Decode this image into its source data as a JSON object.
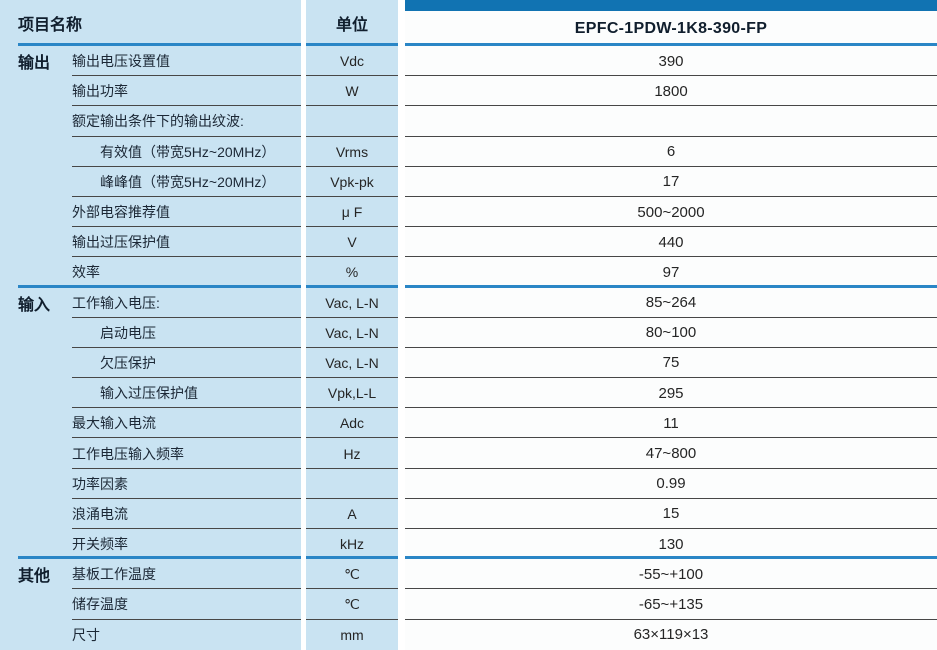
{
  "header": {
    "item_col": "项目名称",
    "unit_col": "单位",
    "model": "EPFC-1PDW-1K8-390-FP"
  },
  "colors": {
    "panel_light_blue": "#c9e3f2",
    "model_top_bar": "#1173b2",
    "section_divider_blue": "#2a86c6",
    "row_line_gray": "#474747",
    "text_dark": "#101e2d"
  },
  "rows": [
    {
      "group": "输出",
      "label": "输出电压设置值",
      "indent": 0,
      "unit": "Vdc",
      "value": "390",
      "section_end": false
    },
    {
      "group": "",
      "label": "输出功率",
      "indent": 0,
      "unit": "W",
      "value": "1800",
      "section_end": false
    },
    {
      "group": "",
      "label": "额定输出条件下的输出纹波:",
      "indent": 0,
      "unit": "",
      "value": "",
      "section_end": false
    },
    {
      "group": "",
      "label": "有效值（带宽5Hz~20MHz）",
      "indent": 1,
      "unit": "Vrms",
      "value": "6",
      "section_end": false
    },
    {
      "group": "",
      "label": "峰峰值（带宽5Hz~20MHz）",
      "indent": 1,
      "unit": "Vpk-pk",
      "value": "17",
      "section_end": false
    },
    {
      "group": "",
      "label": "外部电容推荐值",
      "indent": 0,
      "unit": "μ F",
      "value": "500~2000",
      "section_end": false
    },
    {
      "group": "",
      "label": "输出过压保护值",
      "indent": 0,
      "unit": "V",
      "value": "440",
      "section_end": false
    },
    {
      "group": "",
      "label": "效率",
      "indent": 0,
      "unit": "%",
      "value": "97",
      "section_end": true
    },
    {
      "group": "输入",
      "label": "工作输入电压:",
      "indent": 0,
      "unit": "Vac, L-N",
      "value": "85~264",
      "section_end": false
    },
    {
      "group": "",
      "label": "启动电压",
      "indent": 1,
      "unit": "Vac, L-N",
      "value": "80~100",
      "section_end": false
    },
    {
      "group": "",
      "label": "欠压保护",
      "indent": 1,
      "unit": "Vac, L-N",
      "value": "75",
      "section_end": false
    },
    {
      "group": "",
      "label": "输入过压保护值",
      "indent": 1,
      "unit": "Vpk,L-L",
      "value": "295",
      "section_end": false
    },
    {
      "group": "",
      "label": "最大输入电流",
      "indent": 0,
      "unit": "Adc",
      "value": "11",
      "section_end": false
    },
    {
      "group": "",
      "label": "工作电压输入频率",
      "indent": 0,
      "unit": "Hz",
      "value": "47~800",
      "section_end": false
    },
    {
      "group": "",
      "label": "功率因素",
      "indent": 0,
      "unit": "",
      "value": "0.99",
      "section_end": false
    },
    {
      "group": "",
      "label": "浪涌电流",
      "indent": 0,
      "unit": "A",
      "value": "15",
      "section_end": false
    },
    {
      "group": "",
      "label": "开关频率",
      "indent": 0,
      "unit": "kHz",
      "value": "130",
      "section_end": true
    },
    {
      "group": "其他",
      "label": "基板工作温度",
      "indent": 0,
      "unit": "℃",
      "value": "-55~+100",
      "section_end": false
    },
    {
      "group": "",
      "label": "储存温度",
      "indent": 0,
      "unit": "℃",
      "value": "-65~+135",
      "section_end": false
    },
    {
      "group": "",
      "label": "尺寸",
      "indent": 0,
      "unit": "mm",
      "value": "63×119×13",
      "section_end": false
    }
  ]
}
